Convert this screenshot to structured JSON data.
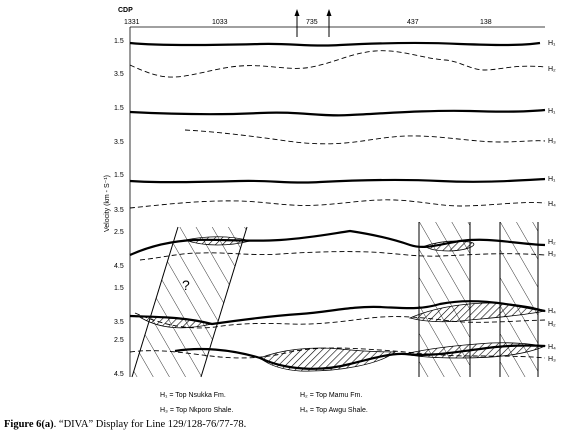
{
  "figure": {
    "cdp_axis_label": "CDP",
    "cdp_ticks": [
      "1331",
      "1033",
      "735",
      "437",
      "138"
    ],
    "y_axis_label": "Velocity (km - S⁻¹)",
    "panels": [
      {
        "ticks": [
          "1.5",
          "3.5"
        ],
        "upper_label": "H₁",
        "lower_label": "H₂"
      },
      {
        "ticks": [
          "1.5",
          "3.5"
        ],
        "upper_label": "H₁",
        "lower_label": "H₃"
      },
      {
        "ticks": [
          "1.5",
          "3.5"
        ],
        "upper_label": "H₁",
        "lower_label": "H₄"
      },
      {
        "ticks": [
          "2.5",
          "4.5"
        ],
        "upper_label": "H₂",
        "lower_label": "H₃"
      },
      {
        "ticks": [
          "1.5",
          "3.5"
        ],
        "upper_label": "H₄",
        "lower_label": "H₂"
      },
      {
        "ticks": [
          "2.5",
          "4.5"
        ],
        "upper_label": "H₄",
        "lower_label": "H₃"
      }
    ],
    "question_mark": "?",
    "legend": [
      "H₁ =  Top Nsukka  Fm.",
      "H₂ =  Top Mamu Fm.",
      "H₃ =  Top Nkporo Shale.",
      "H₄ =  Top Awgu Shale."
    ]
  },
  "caption": {
    "label": "Figure 6(a)",
    "text": ". “DIVA” Display for Line 129/128-76/77-78."
  }
}
